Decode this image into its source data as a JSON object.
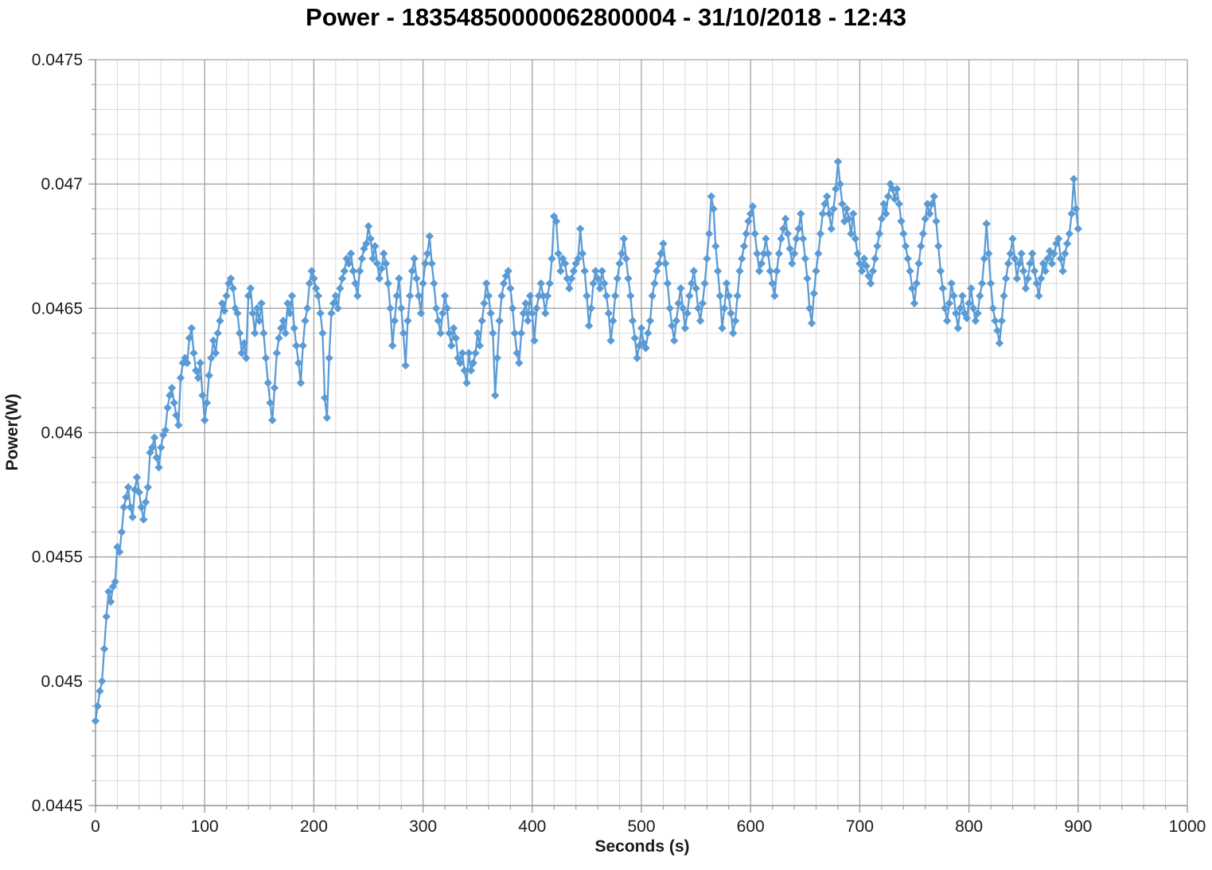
{
  "chart_data": {
    "type": "line",
    "title": "Power - 18354850000062800004 - 31/10/2018 - 12:43",
    "xlabel": "Seconds (s)",
    "ylabel": "Power(W)",
    "xlim": [
      0,
      1000
    ],
    "ylim": [
      0.0445,
      0.0475
    ],
    "x_ticks": {
      "values": [
        0,
        100,
        200,
        300,
        400,
        500,
        600,
        700,
        800,
        900,
        1000
      ],
      "labels": [
        "0",
        "100",
        "200",
        "300",
        "400",
        "500",
        "600",
        "700",
        "800",
        "900",
        "1000"
      ]
    },
    "y_ticks": {
      "values": [
        0.0445,
        0.045,
        0.0455,
        0.046,
        0.0465,
        0.047,
        0.0475
      ],
      "labels": [
        "0.0445",
        "0.045",
        "0.0455",
        "0.046",
        "0.0465",
        "0.047",
        "0.0475"
      ]
    },
    "x_minor_step": 20,
    "y_minor_step": 0.0001,
    "grid": {
      "major_color": "#A3A3A3",
      "minor_color": "#D9D9D9",
      "axis_color": "#9B9B9B",
      "text_color": "#1a1a1a"
    },
    "legend": "none",
    "series": [
      {
        "name": "Power",
        "color": "#5B9BD5",
        "marker": "diamond",
        "x_start": 0,
        "x_step": 2,
        "values": [
          0.04484,
          0.0449,
          0.04496,
          0.045,
          0.04513,
          0.04526,
          0.04536,
          0.04532,
          0.04538,
          0.0454,
          0.04554,
          0.04552,
          0.0456,
          0.0457,
          0.04574,
          0.04578,
          0.0457,
          0.04566,
          0.04577,
          0.04582,
          0.04576,
          0.0457,
          0.04565,
          0.04572,
          0.04578,
          0.04592,
          0.04594,
          0.04598,
          0.0459,
          0.04586,
          0.04594,
          0.04599,
          0.04601,
          0.0461,
          0.04615,
          0.04618,
          0.04612,
          0.04607,
          0.04603,
          0.04622,
          0.04628,
          0.0463,
          0.04628,
          0.04638,
          0.04642,
          0.04632,
          0.04625,
          0.04622,
          0.04628,
          0.04615,
          0.04605,
          0.04612,
          0.04623,
          0.0463,
          0.04637,
          0.04632,
          0.0464,
          0.04645,
          0.04652,
          0.04649,
          0.04655,
          0.0466,
          0.04662,
          0.04658,
          0.0465,
          0.04648,
          0.0464,
          0.04632,
          0.04636,
          0.0463,
          0.04655,
          0.04658,
          0.04648,
          0.0464,
          0.0465,
          0.04645,
          0.04652,
          0.0464,
          0.0463,
          0.0462,
          0.04612,
          0.04605,
          0.04618,
          0.04632,
          0.04638,
          0.04642,
          0.04645,
          0.0464,
          0.04652,
          0.04648,
          0.04655,
          0.04642,
          0.04635,
          0.04628,
          0.0462,
          0.04635,
          0.04645,
          0.0465,
          0.0466,
          0.04665,
          0.04662,
          0.04658,
          0.04655,
          0.04648,
          0.0464,
          0.04614,
          0.04606,
          0.0463,
          0.04648,
          0.04652,
          0.04655,
          0.0465,
          0.04658,
          0.04662,
          0.04665,
          0.0467,
          0.04668,
          0.04672,
          0.04665,
          0.0466,
          0.04655,
          0.04665,
          0.0467,
          0.04674,
          0.04676,
          0.04683,
          0.04678,
          0.0467,
          0.04675,
          0.04668,
          0.04662,
          0.04666,
          0.04672,
          0.04668,
          0.0466,
          0.0465,
          0.04635,
          0.04645,
          0.04655,
          0.04662,
          0.0465,
          0.0464,
          0.04627,
          0.04645,
          0.04655,
          0.04665,
          0.0467,
          0.04662,
          0.04655,
          0.04648,
          0.0466,
          0.04668,
          0.04672,
          0.04679,
          0.04668,
          0.0466,
          0.0465,
          0.04645,
          0.0464,
          0.04648,
          0.04655,
          0.0465,
          0.0464,
          0.04635,
          0.04642,
          0.04638,
          0.0463,
          0.04628,
          0.04632,
          0.04625,
          0.0462,
          0.04632,
          0.04625,
          0.04628,
          0.04632,
          0.0464,
          0.04635,
          0.04645,
          0.04652,
          0.0466,
          0.04655,
          0.04648,
          0.0464,
          0.04615,
          0.0463,
          0.04645,
          0.04655,
          0.0466,
          0.04663,
          0.04665,
          0.04658,
          0.0465,
          0.0464,
          0.04632,
          0.04628,
          0.0464,
          0.04648,
          0.04652,
          0.04645,
          0.04655,
          0.04648,
          0.04637,
          0.0465,
          0.04655,
          0.0466,
          0.04655,
          0.04648,
          0.04655,
          0.0466,
          0.0467,
          0.04687,
          0.04685,
          0.04672,
          0.04665,
          0.0467,
          0.04668,
          0.04662,
          0.04658,
          0.04662,
          0.04665,
          0.04668,
          0.0467,
          0.04682,
          0.04672,
          0.04665,
          0.04655,
          0.04643,
          0.0465,
          0.0466,
          0.04665,
          0.04662,
          0.04658,
          0.04665,
          0.0466,
          0.04655,
          0.04648,
          0.04637,
          0.04645,
          0.04655,
          0.04662,
          0.04668,
          0.04672,
          0.04678,
          0.0467,
          0.04662,
          0.04655,
          0.04645,
          0.04638,
          0.0463,
          0.04635,
          0.04642,
          0.04636,
          0.04634,
          0.0464,
          0.04645,
          0.04655,
          0.0466,
          0.04665,
          0.04668,
          0.04672,
          0.04676,
          0.04668,
          0.0466,
          0.0465,
          0.04643,
          0.04637,
          0.04645,
          0.04652,
          0.04658,
          0.0465,
          0.04642,
          0.04648,
          0.04655,
          0.0466,
          0.04665,
          0.04658,
          0.0465,
          0.04645,
          0.04652,
          0.0466,
          0.0467,
          0.0468,
          0.04695,
          0.0469,
          0.04675,
          0.04665,
          0.04655,
          0.04642,
          0.0465,
          0.0466,
          0.04655,
          0.04648,
          0.0464,
          0.04645,
          0.04655,
          0.04665,
          0.0467,
          0.04675,
          0.0468,
          0.04685,
          0.04688,
          0.04691,
          0.0468,
          0.04672,
          0.04665,
          0.04668,
          0.04672,
          0.04678,
          0.04672,
          0.04665,
          0.0466,
          0.04655,
          0.04665,
          0.04672,
          0.04678,
          0.04682,
          0.04686,
          0.0468,
          0.04674,
          0.04668,
          0.04672,
          0.04678,
          0.04682,
          0.04688,
          0.04678,
          0.0467,
          0.04662,
          0.0465,
          0.04644,
          0.04656,
          0.04665,
          0.04672,
          0.0468,
          0.04688,
          0.04692,
          0.04695,
          0.04688,
          0.04682,
          0.0469,
          0.04698,
          0.04709,
          0.047,
          0.04692,
          0.04685,
          0.0469,
          0.04686,
          0.0468,
          0.04688,
          0.04678,
          0.04672,
          0.04668,
          0.04665,
          0.0467,
          0.04667,
          0.04663,
          0.0466,
          0.04665,
          0.0467,
          0.04675,
          0.0468,
          0.04686,
          0.04692,
          0.04688,
          0.04695,
          0.047,
          0.04698,
          0.04694,
          0.04698,
          0.04692,
          0.04685,
          0.0468,
          0.04675,
          0.0467,
          0.04665,
          0.04658,
          0.04652,
          0.0466,
          0.04668,
          0.04675,
          0.0468,
          0.04686,
          0.04692,
          0.04688,
          0.04692,
          0.04695,
          0.04685,
          0.04675,
          0.04665,
          0.04658,
          0.0465,
          0.04645,
          0.04652,
          0.0466,
          0.04655,
          0.04648,
          0.04642,
          0.0465,
          0.04655,
          0.04648,
          0.04646,
          0.04652,
          0.04658,
          0.0465,
          0.04645,
          0.04648,
          0.04655,
          0.0466,
          0.0467,
          0.04684,
          0.04672,
          0.0466,
          0.0465,
          0.04645,
          0.04641,
          0.04636,
          0.04645,
          0.04655,
          0.04662,
          0.04668,
          0.04672,
          0.04678,
          0.0467,
          0.04662,
          0.04668,
          0.04672,
          0.04665,
          0.04658,
          0.04662,
          0.04668,
          0.04672,
          0.04665,
          0.0466,
          0.04655,
          0.04662,
          0.04668,
          0.04665,
          0.0467,
          0.04673,
          0.04668,
          0.04672,
          0.04676,
          0.04678,
          0.0467,
          0.04665,
          0.04672,
          0.04676,
          0.0468,
          0.04688,
          0.04702,
          0.0469,
          0.04682
        ]
      }
    ]
  }
}
